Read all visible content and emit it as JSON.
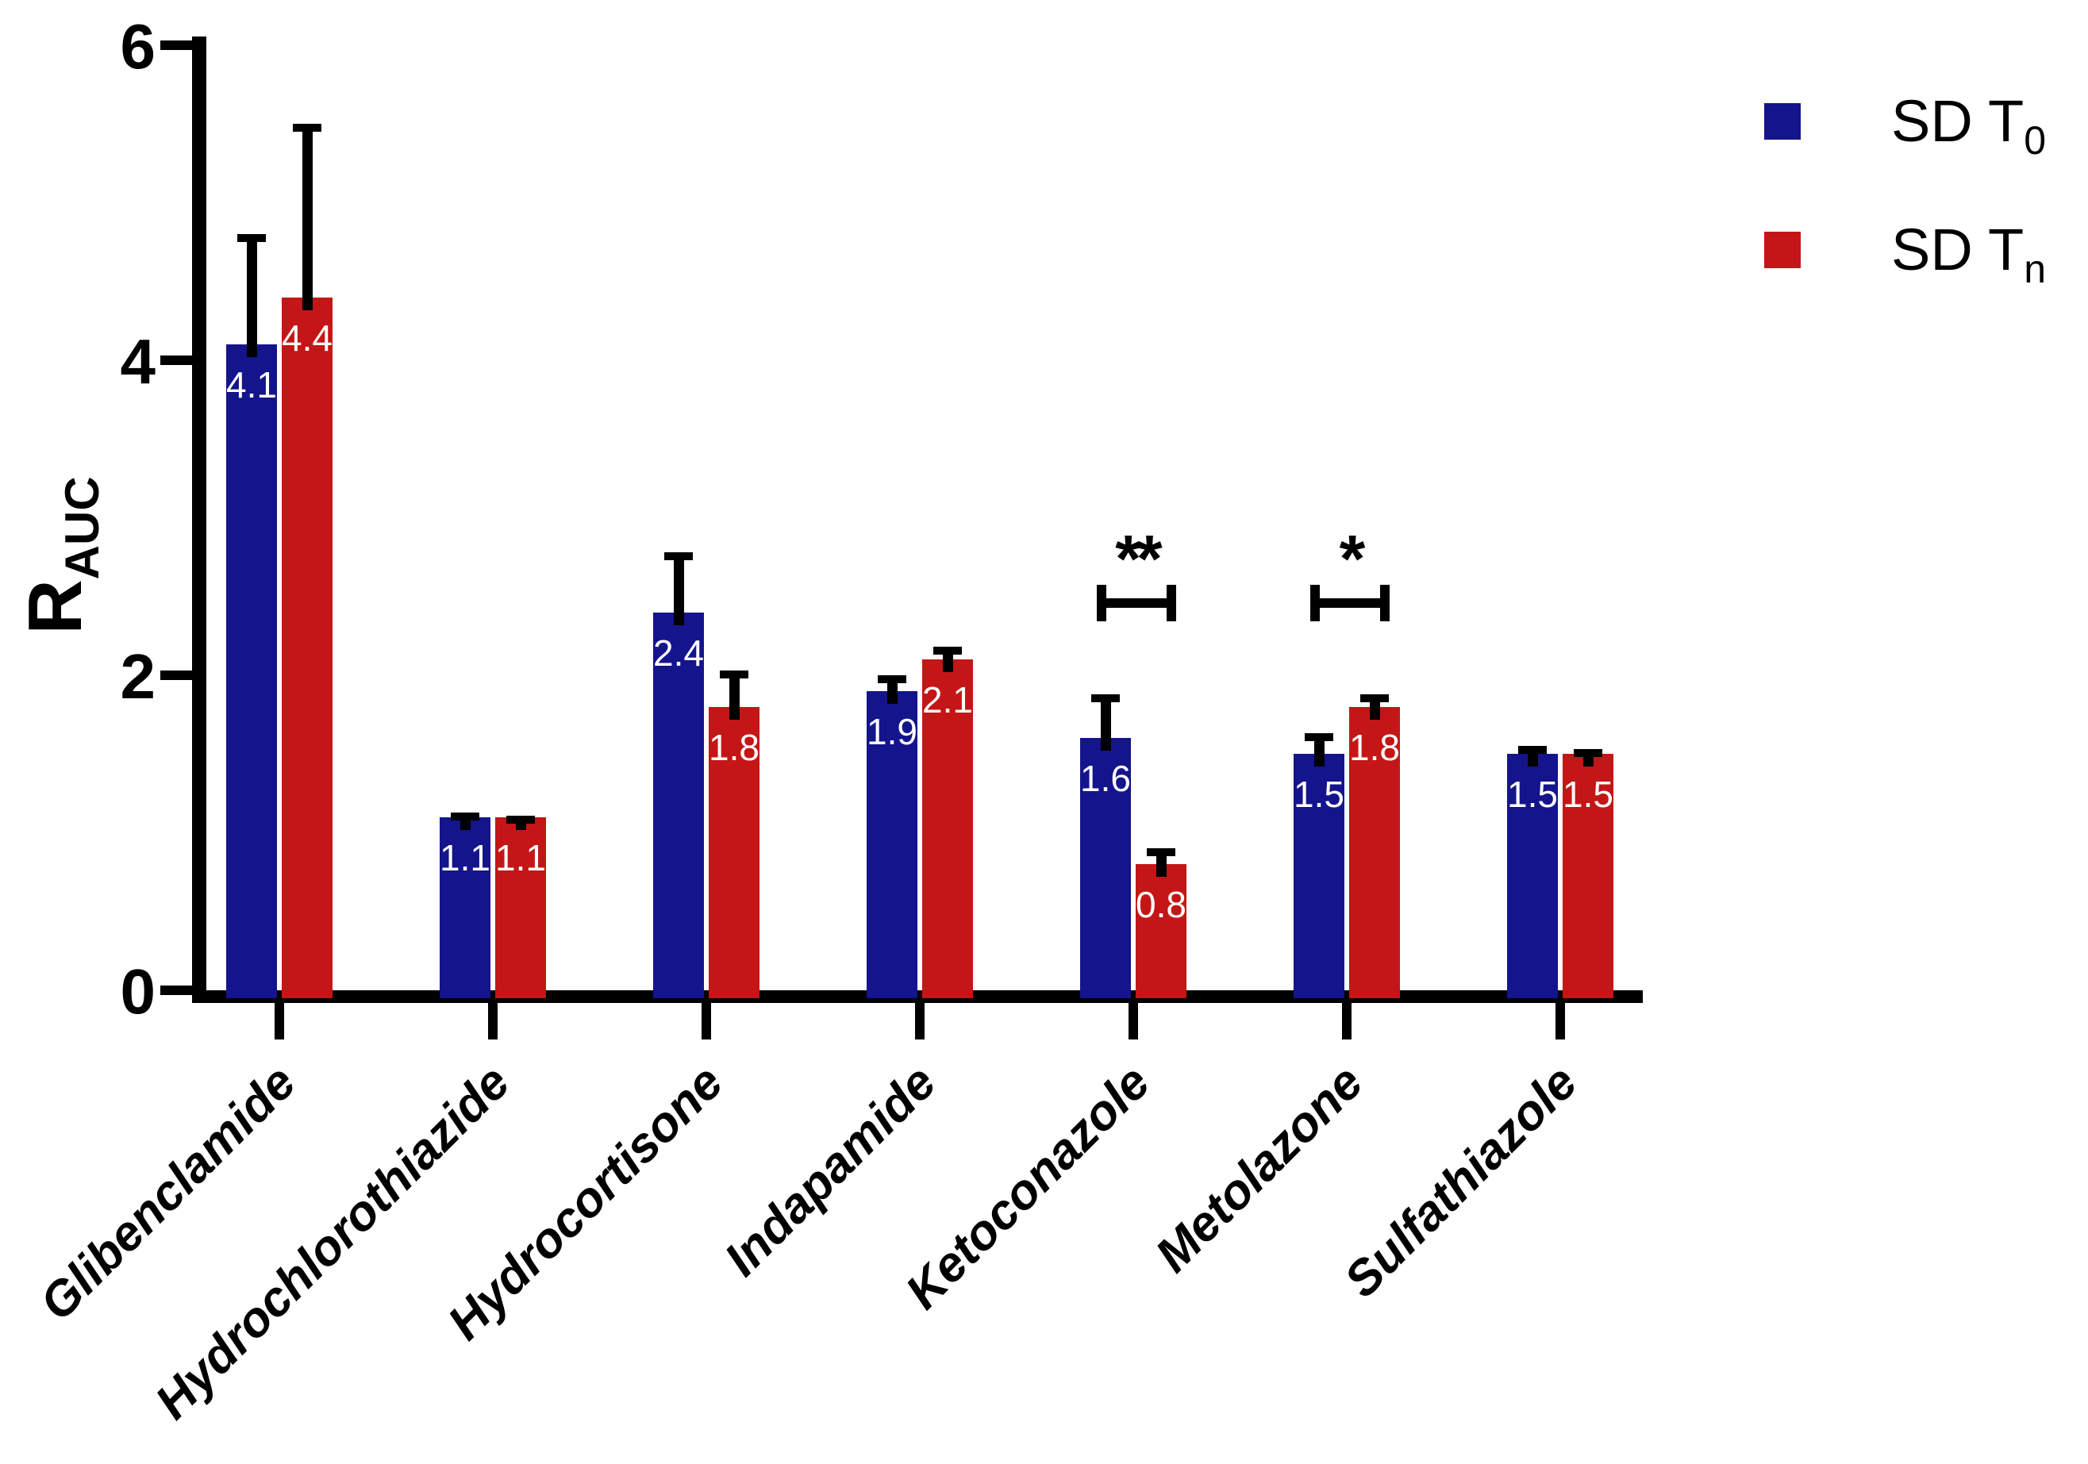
{
  "chart_data": {
    "type": "bar",
    "title": "",
    "ylabel_base": "R",
    "ylabel_sub": "AUC",
    "ylim": [
      0,
      6
    ],
    "yticks": [
      "0",
      "2",
      "4",
      "6"
    ],
    "grid": false,
    "legend_position": "top-right",
    "categories": [
      "Glibenclamide",
      "Hydrochlorothiazide",
      "Hydrocortisone",
      "Indapamide",
      "Ketoconazole",
      "Metolazone",
      "Sulfathiazole"
    ],
    "series": [
      {
        "name": "SD T0",
        "name_base": "SD T",
        "name_sub": "0",
        "color": "#14148C",
        "values": [
          4.1,
          1.1,
          2.4,
          1.9,
          1.6,
          1.5,
          1.5
        ],
        "value_labels": [
          "4.1",
          "1.1",
          "2.4",
          "1.9",
          "1.6",
          "1.5",
          "1.5"
        ],
        "error_bar_tops": [
          4.8,
          1.13,
          2.78,
          2.0,
          1.88,
          1.63,
          1.55
        ]
      },
      {
        "name": "SD Tn",
        "name_base": "SD T",
        "name_sub": "n",
        "color": "#C41616",
        "values": [
          4.4,
          1.1,
          1.8,
          2.1,
          0.8,
          1.8,
          1.5
        ],
        "value_labels": [
          "4.4",
          "1.1",
          "1.8",
          "2.1",
          "0.8",
          "1.8",
          "1.5"
        ],
        "error_bar_tops": [
          5.5,
          1.11,
          2.03,
          2.18,
          0.9,
          1.88,
          1.53
        ]
      }
    ],
    "significance": [
      {
        "category": "Ketoconazole",
        "category_index": 4,
        "label": "**"
      },
      {
        "category": "Metolazone",
        "category_index": 5,
        "label": "*"
      }
    ],
    "bar_label_color": "#FFFFFF",
    "axis_color": "#000000"
  }
}
